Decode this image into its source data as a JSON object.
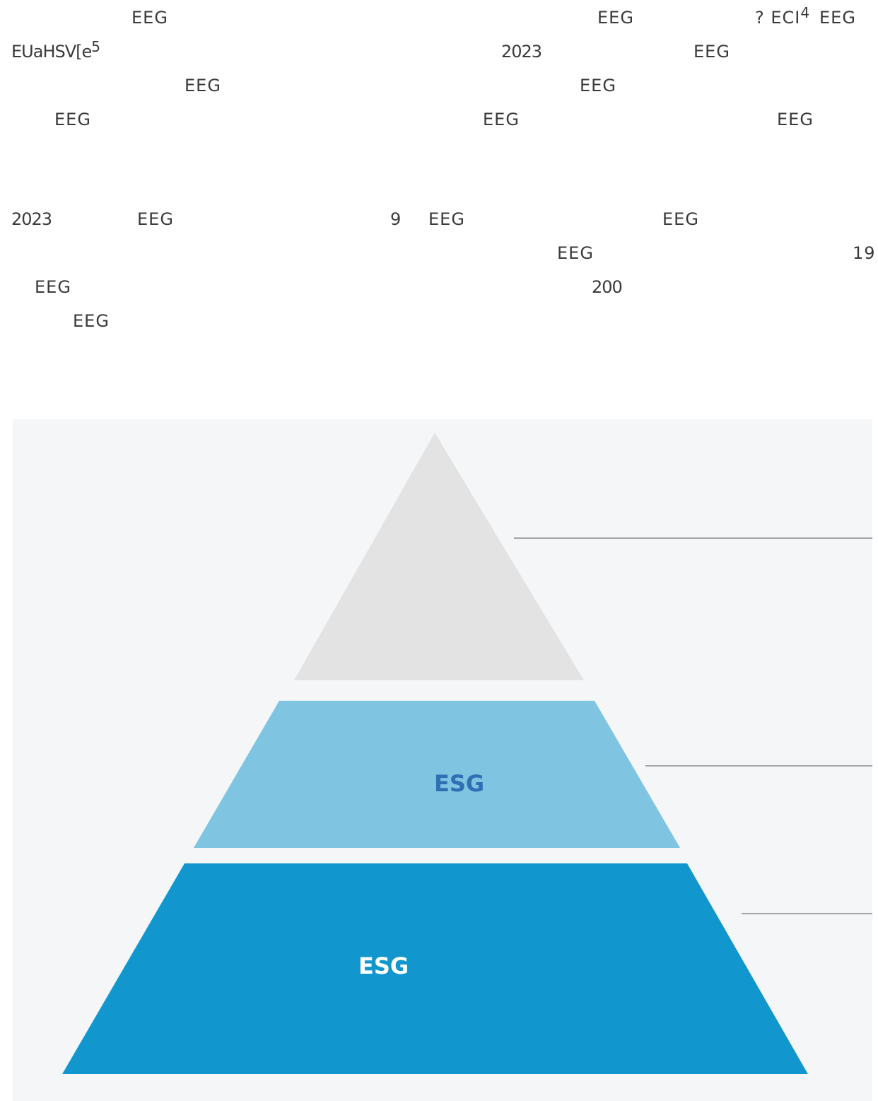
{
  "text": {
    "p1_l1_a": "EEG",
    "p1_l1_b": "EEG",
    "p1_l1_c": "? ECI",
    "p1_l1_c_sup": "4",
    "p1_l1_d": "EEG",
    "p1_l2_a": "EUaHSV[e",
    "p1_l2_a_sup": "5",
    "p1_l2_b": "2023",
    "p1_l2_c": "EEG",
    "p1_l3_a": "EEG",
    "p1_l3_b": "EEG",
    "p1_l4_a": "EEG",
    "p1_l4_b": "EEG",
    "p1_l4_c": "EEG",
    "p2_l1_a": "2023",
    "p2_l1_b": "EEG",
    "p2_l1_c": "9",
    "p2_l1_d": "EEG",
    "p2_l1_e": "EEG",
    "p2_l2_a": "EEG",
    "p2_l2_b": "19",
    "p2_l3_a": "EEG",
    "p2_l3_b": "200",
    "p2_l4_a": "EEG"
  },
  "pyramid": {
    "tiers": [
      {
        "label": "",
        "color": "#e3e3e3"
      },
      {
        "label": "ESG",
        "color": "#7fc4e1",
        "label_color": "#2f6fb5"
      },
      {
        "label": "ESG",
        "color": "#1196ce",
        "label_color": "#ffffff"
      }
    ],
    "background": "#f4f6f8",
    "leader_line_color": "#8a8a8a"
  }
}
